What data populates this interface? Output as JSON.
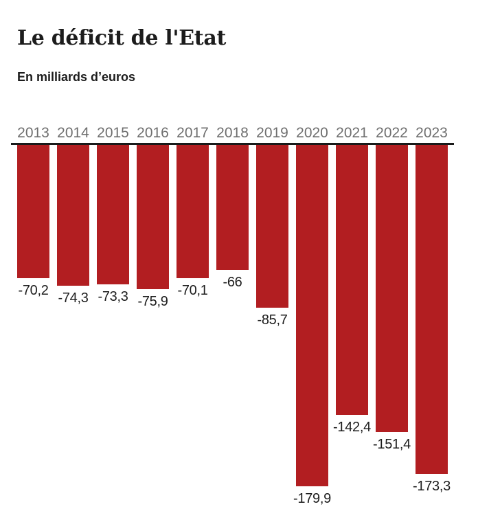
{
  "header": {
    "title": "Le déficit de l'Etat",
    "subtitle": "En milliards d’euros"
  },
  "chart_data": {
    "type": "bar",
    "title": "Le déficit de l'Etat",
    "subtitle": "En milliards d’euros",
    "orientation": "vertical-downward",
    "categories": [
      "2013",
      "2014",
      "2015",
      "2016",
      "2017",
      "2018",
      "2019",
      "2020",
      "2021",
      "2022",
      "2023"
    ],
    "values": [
      -70.2,
      -74.3,
      -73.3,
      -75.9,
      -70.1,
      -66,
      -85.7,
      -179.9,
      -142.4,
      -151.4,
      -173.3
    ],
    "value_labels": [
      "-70,2",
      "-74,3",
      "-73,3",
      "-75,9",
      "-70,1",
      "-66",
      "-85,7",
      "-179,9",
      "-142,4",
      "-151,4",
      "-173,3"
    ],
    "ylim": [
      -180,
      0
    ],
    "grid": "off",
    "legend": "none",
    "bar_color": "#b21e21",
    "axis_line_color": "#1a1a1a",
    "category_label_color": "#6e6e6e",
    "value_label_color": "#1d1d1d"
  }
}
